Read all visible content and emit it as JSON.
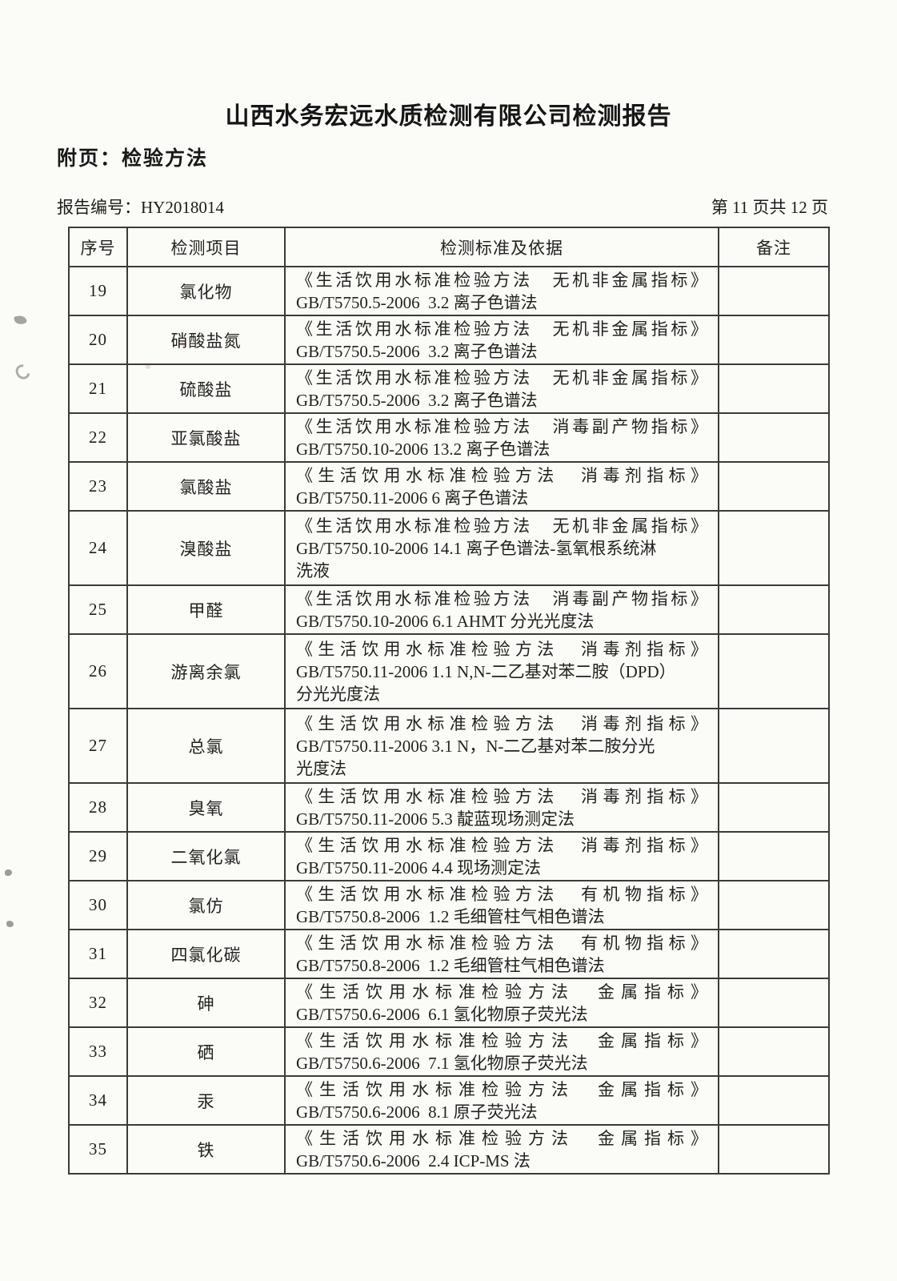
{
  "document": {
    "title": "山西水务宏远水质检测有限公司检测报告",
    "subtitle": "附页：检验方法",
    "report_no_label": "报告编号：",
    "report_no": "HY2018014",
    "page_info": "第 11 页共 12 页"
  },
  "table": {
    "headers": [
      "序号",
      "检测项目",
      "检测标准及依据",
      "备注"
    ],
    "rows": [
      {
        "no": "19",
        "item": "氯化物",
        "standard_lines": [
          "《生活饮用水标准检验方法　无机非金属指标》",
          "GB/T5750.5-2006  3.2 离子色谱法"
        ],
        "remark": ""
      },
      {
        "no": "20",
        "item": "硝酸盐氮",
        "standard_lines": [
          "《生活饮用水标准检验方法　无机非金属指标》",
          "GB/T5750.5-2006  3.2 离子色谱法"
        ],
        "remark": ""
      },
      {
        "no": "21",
        "item": "硫酸盐",
        "standard_lines": [
          "《生活饮用水标准检验方法　无机非金属指标》",
          "GB/T5750.5-2006  3.2 离子色谱法"
        ],
        "remark": ""
      },
      {
        "no": "22",
        "item": "亚氯酸盐",
        "standard_lines": [
          "《生活饮用水标准检验方法　消毒副产物指标》",
          "GB/T5750.10-2006 13.2 离子色谱法"
        ],
        "remark": ""
      },
      {
        "no": "23",
        "item": "氯酸盐",
        "standard_lines": [
          "《生活饮用水标准检验方法　消毒剂指标》",
          "GB/T5750.11-2006 6 离子色谱法"
        ],
        "remark": ""
      },
      {
        "no": "24",
        "item": "溴酸盐",
        "standard_lines": [
          "《生活饮用水标准检验方法　无机非金属指标》",
          "GB/T5750.10-2006 14.1 离子色谱法-氢氧根系统淋",
          "洗液"
        ],
        "remark": ""
      },
      {
        "no": "25",
        "item": "甲醛",
        "standard_lines": [
          "《生活饮用水标准检验方法　消毒副产物指标》",
          "GB/T5750.10-2006 6.1 AHMT 分光光度法"
        ],
        "remark": ""
      },
      {
        "no": "26",
        "item": "游离余氯",
        "standard_lines": [
          "《生活饮用水标准检验方法　消毒剂指标》",
          "GB/T5750.11-2006 1.1 N,N-二乙基对苯二胺（DPD）",
          "分光光度法"
        ],
        "remark": ""
      },
      {
        "no": "27",
        "item": "总氯",
        "standard_lines": [
          "《生活饮用水标准检验方法　消毒剂指标》",
          "GB/T5750.11-2006 3.1 N，N-二乙基对苯二胺分光",
          "光度法"
        ],
        "remark": ""
      },
      {
        "no": "28",
        "item": "臭氧",
        "standard_lines": [
          "《生活饮用水标准检验方法　消毒剂指标》",
          "GB/T5750.11-2006 5.3 靛蓝现场测定法"
        ],
        "remark": ""
      },
      {
        "no": "29",
        "item": "二氧化氯",
        "standard_lines": [
          "《生活饮用水标准检验方法　消毒剂指标》",
          "GB/T5750.11-2006 4.4 现场测定法"
        ],
        "remark": ""
      },
      {
        "no": "30",
        "item": "氯仿",
        "standard_lines": [
          "《生活饮用水标准检验方法　有机物指标》",
          "GB/T5750.8-2006  1.2 毛细管柱气相色谱法"
        ],
        "remark": ""
      },
      {
        "no": "31",
        "item": "四氯化碳",
        "standard_lines": [
          "《生活饮用水标准检验方法　有机物指标》",
          "GB/T5750.8-2006  1.2 毛细管柱气相色谱法"
        ],
        "remark": ""
      },
      {
        "no": "32",
        "item": "砷",
        "standard_lines": [
          "《生活饮用水标准检验方法　金属指标》",
          "GB/T5750.6-2006  6.1 氢化物原子荧光法"
        ],
        "remark": ""
      },
      {
        "no": "33",
        "item": "硒",
        "standard_lines": [
          "《生活饮用水标准检验方法　金属指标》",
          "GB/T5750.6-2006  7.1 氢化物原子荧光法"
        ],
        "remark": ""
      },
      {
        "no": "34",
        "item": "汞",
        "standard_lines": [
          "《生活饮用水标准检验方法　金属指标》",
          "GB/T5750.6-2006  8.1 原子荧光法"
        ],
        "remark": ""
      },
      {
        "no": "35",
        "item": "铁",
        "standard_lines": [
          "《生活饮用水标准检验方法　金属指标》",
          "GB/T5750.6-2006  2.4 ICP-MS 法"
        ],
        "remark": ""
      }
    ]
  }
}
